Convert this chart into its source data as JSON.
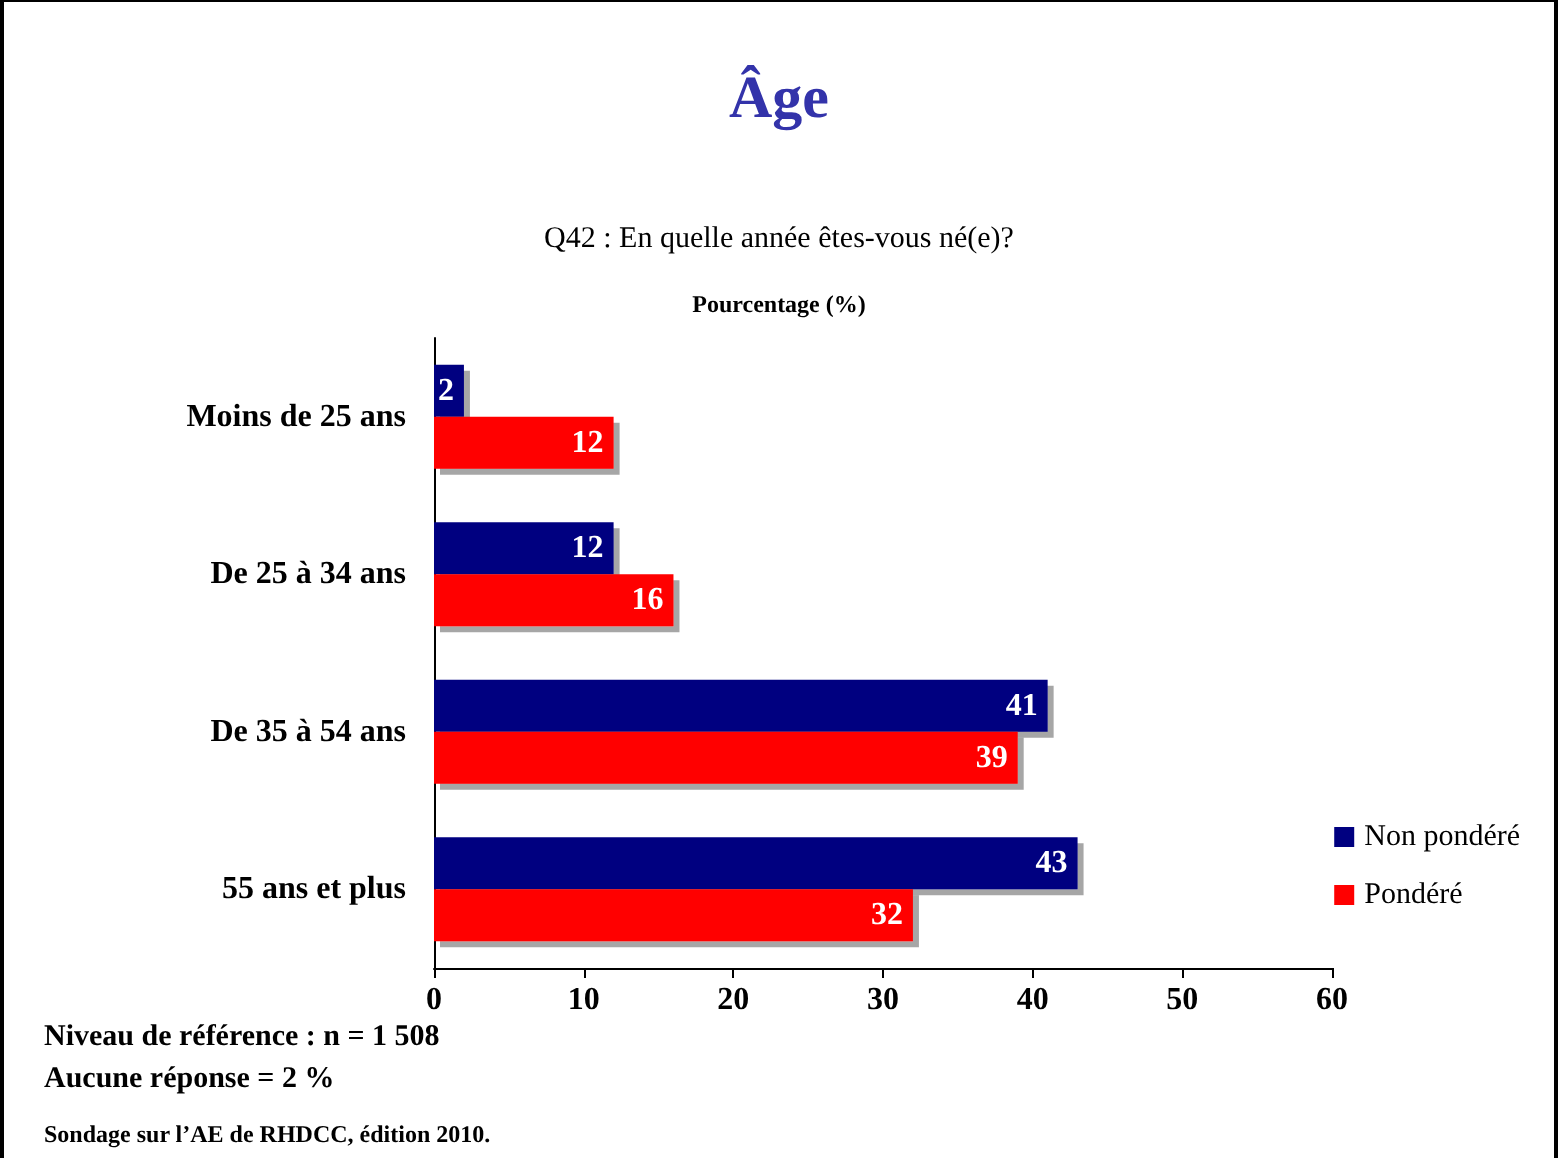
{
  "chart_data": {
    "type": "bar",
    "orientation": "horizontal",
    "title": "Âge",
    "subtitle": "Q42 : En quelle année êtes-vous né(e)?",
    "xlabel": "Pourcentage (%)",
    "categories": [
      "Moins de 25 ans",
      "De 25 à 34 ans",
      "De 35 à 54 ans",
      "55 ans et plus"
    ],
    "series": [
      {
        "name": "Non pondéré",
        "color": "#000080",
        "values": [
          2,
          12,
          41,
          43
        ]
      },
      {
        "name": "Pondéré",
        "color": "#ff0000",
        "values": [
          12,
          16,
          39,
          32
        ]
      }
    ],
    "xlim": [
      0,
      60
    ],
    "xticks": [
      0,
      10,
      20,
      30,
      40,
      50,
      60
    ],
    "grid": false,
    "legend": "right",
    "data_labels": true,
    "annotations": [
      "Niveau de référence : n = 1 508",
      "Aucune réponse = 2 %",
      "Sondage sur l’AE de RHDCC, édition 2010."
    ]
  }
}
